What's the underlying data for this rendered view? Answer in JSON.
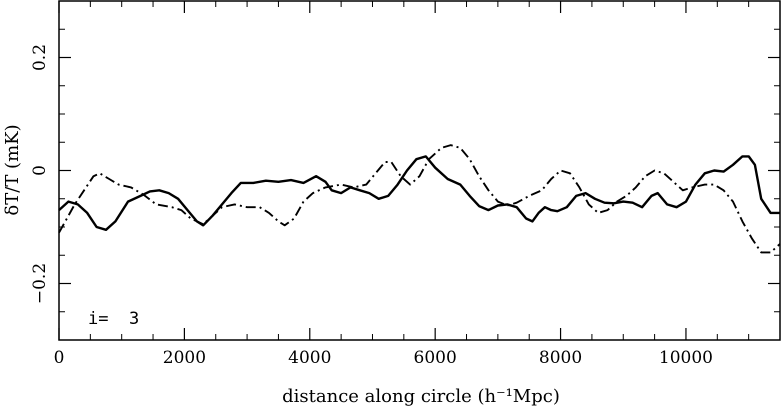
{
  "chart_data": {
    "type": "line",
    "title": "",
    "xlabel": "distance along circle (h⁻¹Mpc)",
    "ylabel": "δT/T (mK)",
    "xlim": [
      0,
      11500
    ],
    "ylim": [
      -0.3,
      0.3
    ],
    "x_ticks": [
      0,
      2000,
      4000,
      6000,
      8000,
      10000
    ],
    "x_tick_labels": [
      "0",
      "2000",
      "4000",
      "6000",
      "8000",
      "10000"
    ],
    "y_ticks": [
      -0.2,
      0,
      0.2
    ],
    "y_tick_labels": [
      "−0.2",
      "0",
      "0.2"
    ],
    "annotation": "i=  3",
    "grid": false,
    "series": [
      {
        "style": "solid",
        "points": [
          [
            0,
            -0.07
          ],
          [
            150,
            -0.055
          ],
          [
            300,
            -0.06
          ],
          [
            450,
            -0.075
          ],
          [
            600,
            -0.1
          ],
          [
            750,
            -0.105
          ],
          [
            900,
            -0.09
          ],
          [
            1100,
            -0.055
          ],
          [
            1300,
            -0.045
          ],
          [
            1450,
            -0.037
          ],
          [
            1600,
            -0.035
          ],
          [
            1750,
            -0.04
          ],
          [
            1900,
            -0.05
          ],
          [
            2050,
            -0.07
          ],
          [
            2200,
            -0.09
          ],
          [
            2300,
            -0.097
          ],
          [
            2450,
            -0.08
          ],
          [
            2600,
            -0.06
          ],
          [
            2750,
            -0.04
          ],
          [
            2900,
            -0.022
          ],
          [
            3100,
            -0.022
          ],
          [
            3300,
            -0.018
          ],
          [
            3500,
            -0.02
          ],
          [
            3700,
            -0.017
          ],
          [
            3900,
            -0.022
          ],
          [
            4100,
            -0.01
          ],
          [
            4250,
            -0.02
          ],
          [
            4350,
            -0.035
          ],
          [
            4500,
            -0.04
          ],
          [
            4650,
            -0.03
          ],
          [
            4800,
            -0.035
          ],
          [
            4950,
            -0.04
          ],
          [
            5100,
            -0.05
          ],
          [
            5250,
            -0.045
          ],
          [
            5400,
            -0.025
          ],
          [
            5550,
            0.0
          ],
          [
            5700,
            0.02
          ],
          [
            5850,
            0.025
          ],
          [
            6000,
            0.005
          ],
          [
            6200,
            -0.015
          ],
          [
            6400,
            -0.025
          ],
          [
            6550,
            -0.045
          ],
          [
            6700,
            -0.063
          ],
          [
            6850,
            -0.07
          ],
          [
            7000,
            -0.062
          ],
          [
            7150,
            -0.06
          ],
          [
            7300,
            -0.065
          ],
          [
            7450,
            -0.085
          ],
          [
            7550,
            -0.09
          ],
          [
            7650,
            -0.075
          ],
          [
            7750,
            -0.065
          ],
          [
            7850,
            -0.07
          ],
          [
            7950,
            -0.072
          ],
          [
            8100,
            -0.065
          ],
          [
            8250,
            -0.045
          ],
          [
            8400,
            -0.04
          ],
          [
            8550,
            -0.05
          ],
          [
            8700,
            -0.057
          ],
          [
            8850,
            -0.058
          ],
          [
            9000,
            -0.055
          ],
          [
            9150,
            -0.057
          ],
          [
            9300,
            -0.065
          ],
          [
            9450,
            -0.045
          ],
          [
            9550,
            -0.04
          ],
          [
            9700,
            -0.06
          ],
          [
            9850,
            -0.065
          ],
          [
            10000,
            -0.055
          ],
          [
            10150,
            -0.025
          ],
          [
            10300,
            -0.005
          ],
          [
            10450,
            0.0
          ],
          [
            10600,
            -0.002
          ],
          [
            10750,
            0.01
          ],
          [
            10900,
            0.025
          ],
          [
            11000,
            0.025
          ],
          [
            11100,
            0.01
          ],
          [
            11200,
            -0.05
          ],
          [
            11350,
            -0.075
          ],
          [
            11500,
            -0.075
          ]
        ]
      },
      {
        "style": "dash-dot",
        "points": [
          [
            0,
            -0.11
          ],
          [
            100,
            -0.09
          ],
          [
            250,
            -0.06
          ],
          [
            400,
            -0.035
          ],
          [
            550,
            -0.01
          ],
          [
            650,
            -0.005
          ],
          [
            800,
            -0.015
          ],
          [
            950,
            -0.025
          ],
          [
            1150,
            -0.03
          ],
          [
            1350,
            -0.043
          ],
          [
            1550,
            -0.06
          ],
          [
            1800,
            -0.065
          ],
          [
            1950,
            -0.07
          ],
          [
            2100,
            -0.085
          ],
          [
            2300,
            -0.095
          ],
          [
            2450,
            -0.08
          ],
          [
            2600,
            -0.065
          ],
          [
            2800,
            -0.06
          ],
          [
            3000,
            -0.065
          ],
          [
            3200,
            -0.065
          ],
          [
            3350,
            -0.075
          ],
          [
            3500,
            -0.09
          ],
          [
            3600,
            -0.097
          ],
          [
            3750,
            -0.085
          ],
          [
            3900,
            -0.055
          ],
          [
            4050,
            -0.04
          ],
          [
            4250,
            -0.03
          ],
          [
            4500,
            -0.025
          ],
          [
            4700,
            -0.03
          ],
          [
            4900,
            -0.025
          ],
          [
            5050,
            -0.005
          ],
          [
            5200,
            0.015
          ],
          [
            5300,
            0.015
          ],
          [
            5450,
            -0.01
          ],
          [
            5600,
            -0.025
          ],
          [
            5750,
            -0.01
          ],
          [
            5900,
            0.02
          ],
          [
            6100,
            0.04
          ],
          [
            6250,
            0.045
          ],
          [
            6400,
            0.04
          ],
          [
            6550,
            0.02
          ],
          [
            6700,
            -0.01
          ],
          [
            6850,
            -0.035
          ],
          [
            7000,
            -0.055
          ],
          [
            7150,
            -0.062
          ],
          [
            7300,
            -0.057
          ],
          [
            7500,
            -0.045
          ],
          [
            7700,
            -0.035
          ],
          [
            7850,
            -0.015
          ],
          [
            8000,
            0.0
          ],
          [
            8150,
            -0.005
          ],
          [
            8300,
            -0.03
          ],
          [
            8450,
            -0.06
          ],
          [
            8600,
            -0.075
          ],
          [
            8750,
            -0.07
          ],
          [
            8900,
            -0.055
          ],
          [
            9050,
            -0.045
          ],
          [
            9200,
            -0.03
          ],
          [
            9350,
            -0.01
          ],
          [
            9500,
            0.0
          ],
          [
            9650,
            -0.005
          ],
          [
            9800,
            -0.02
          ],
          [
            9950,
            -0.035
          ],
          [
            10100,
            -0.03
          ],
          [
            10300,
            -0.025
          ],
          [
            10450,
            -0.025
          ],
          [
            10600,
            -0.035
          ],
          [
            10750,
            -0.055
          ],
          [
            10900,
            -0.09
          ],
          [
            11050,
            -0.12
          ],
          [
            11200,
            -0.145
          ],
          [
            11350,
            -0.145
          ],
          [
            11500,
            -0.13
          ]
        ]
      }
    ]
  }
}
